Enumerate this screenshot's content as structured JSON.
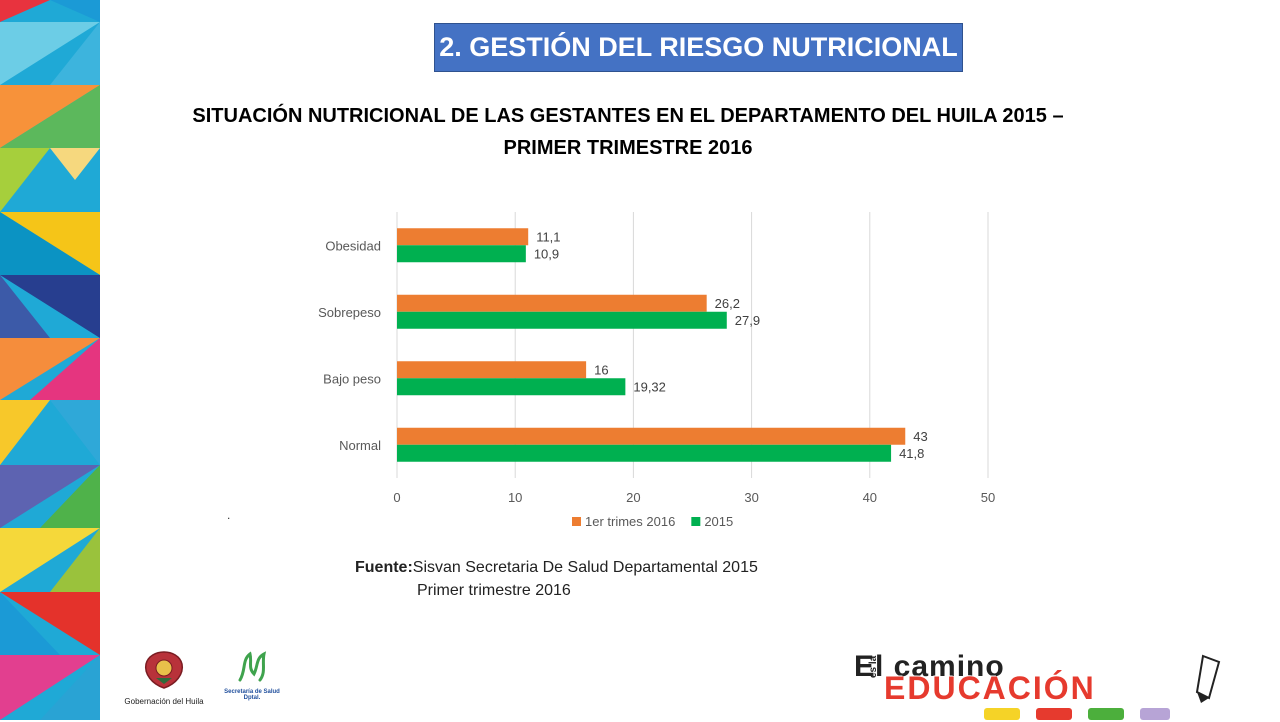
{
  "header": {
    "title": "2. GESTIÓN DEL RIESGO NUTRICIONAL"
  },
  "chart_title": {
    "line1": "SITUACIÓN NUTRICIONAL DE LAS GESTANTES EN EL DEPARTAMENTO DEL HUILA 2015 –",
    "line2": "PRIMER TRIMESTRE 2016"
  },
  "colors": {
    "series_2016": "#ed7d31",
    "series_2015": "#00b050",
    "header_bg": "#4472c4",
    "grid": "#d9d9d9"
  },
  "chart_data": {
    "type": "bar",
    "orientation": "horizontal",
    "categories": [
      "Obesidad",
      "Sobrepeso",
      "Bajo peso",
      "Normal"
    ],
    "series": [
      {
        "name": "1er trimes 2016",
        "values": [
          11.1,
          26.2,
          16,
          43
        ],
        "labels": [
          "11,1",
          "26,2",
          "16",
          "43"
        ],
        "color": "#ed7d31"
      },
      {
        "name": "2015",
        "values": [
          10.9,
          27.9,
          19.32,
          41.8
        ],
        "labels": [
          "10,9",
          "27,9",
          "19,32",
          "41,8"
        ],
        "color": "#00b050"
      }
    ],
    "xlim": [
      0,
      50
    ],
    "xticks": [
      0,
      10,
      20,
      30,
      40,
      50
    ],
    "grid": true,
    "legend": "bottom"
  },
  "dot_mark": ".",
  "source": {
    "label": "Fuente:",
    "line1": "Sisvan Secretaria De Salud Departamental 2015",
    "line2": "Primer trimestre 2016"
  },
  "logos": {
    "gobernacion_caption": "Gobernación del Huila",
    "salud_caption_1": "Secretaría de Salud",
    "salud_caption_2": "Dptal."
  },
  "campaign": {
    "top": "El camino",
    "side": "es la",
    "main": "EDUCACIÓN"
  }
}
